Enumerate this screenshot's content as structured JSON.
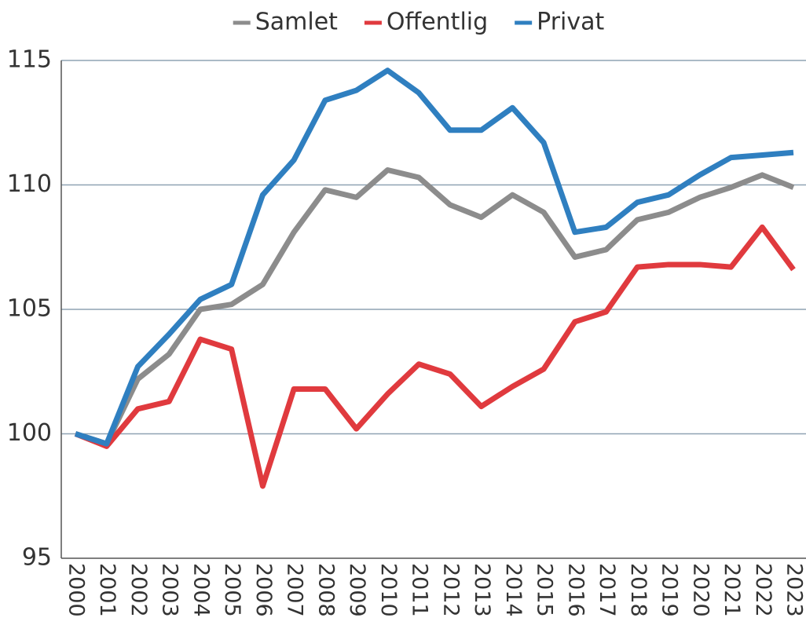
{
  "chart_data": {
    "type": "line",
    "categories": [
      "2000",
      "2001",
      "2002",
      "2003",
      "2004",
      "2005",
      "2006",
      "2007",
      "2008",
      "2009",
      "2010",
      "2011",
      "2012",
      "2013",
      "2014",
      "2015",
      "2016",
      "2017",
      "2018",
      "2019",
      "2020",
      "2021",
      "2022",
      "2023"
    ],
    "series": [
      {
        "name": "Samlet",
        "color": "#8c8c8c",
        "values": [
          100,
          99.6,
          102.2,
          103.2,
          105.0,
          105.2,
          106.0,
          108.1,
          109.8,
          109.5,
          110.6,
          110.3,
          109.2,
          108.7,
          109.6,
          108.9,
          107.1,
          107.4,
          108.6,
          108.9,
          109.5,
          109.9,
          110.4,
          109.9
        ]
      },
      {
        "name": "Offentlig",
        "color": "#e03a3e",
        "values": [
          100,
          99.5,
          101.0,
          101.3,
          103.8,
          103.4,
          97.9,
          101.8,
          101.8,
          100.2,
          101.6,
          102.8,
          102.4,
          101.1,
          101.9,
          102.6,
          104.5,
          104.9,
          106.7,
          106.8,
          106.8,
          106.7,
          108.3,
          106.6
        ]
      },
      {
        "name": "Privat",
        "color": "#2f7fc0",
        "values": [
          100,
          99.6,
          102.7,
          104.0,
          105.4,
          106.0,
          109.6,
          111.0,
          113.4,
          113.8,
          114.6,
          113.7,
          112.2,
          112.2,
          113.1,
          111.7,
          108.1,
          108.3,
          109.3,
          109.6,
          110.4,
          111.1,
          111.2,
          111.3
        ]
      }
    ],
    "ylim": [
      95,
      115
    ],
    "yticks": [
      95,
      100,
      105,
      110,
      115
    ],
    "grid": true,
    "legend": "top"
  }
}
